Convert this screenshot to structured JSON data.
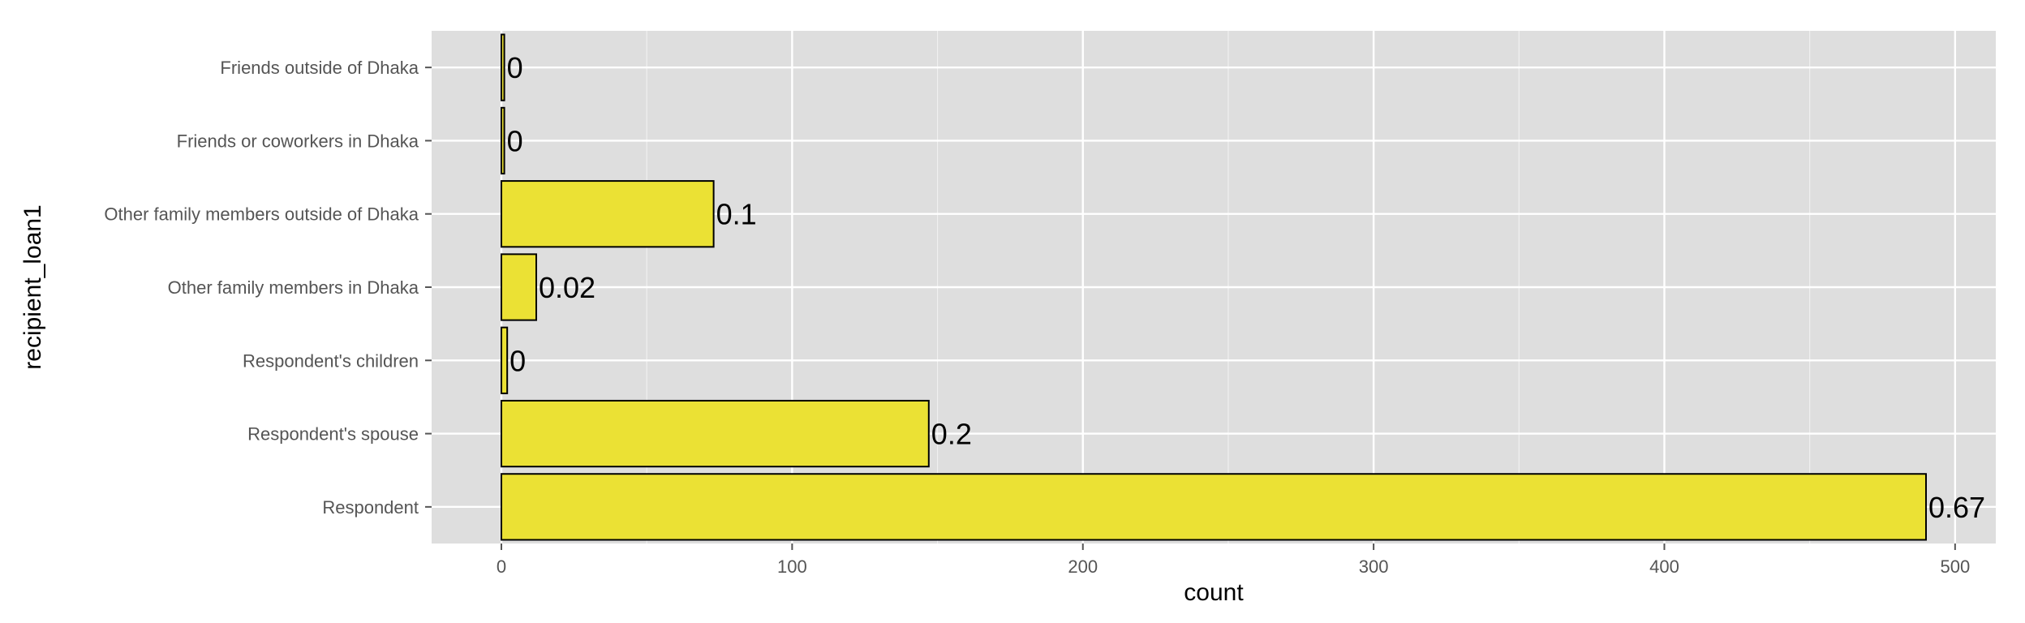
{
  "chart_data": {
    "type": "bar",
    "orientation": "horizontal",
    "categories": [
      "Respondent",
      "Respondent's spouse",
      "Respondent's children",
      "Other family members in Dhaka",
      "Other family members outside of Dhaka",
      "Friends or coworkers in Dhaka",
      "Friends outside of Dhaka"
    ],
    "values": [
      490,
      147,
      2,
      12,
      73,
      1,
      1
    ],
    "data_labels": [
      "0.67",
      "0.2",
      "0",
      "0.02",
      "0.1",
      "0",
      "0"
    ],
    "xlabel": "count",
    "ylabel": "recipient_loan1",
    "xlim": [
      -24,
      514
    ],
    "xticks": [
      0,
      100,
      200,
      300,
      400,
      500
    ],
    "grid": true,
    "bar_color": "#EBE134",
    "bar_outline": "#000000",
    "panel_background": "#DEDEDE",
    "grid_color": "#FFFFFF"
  }
}
